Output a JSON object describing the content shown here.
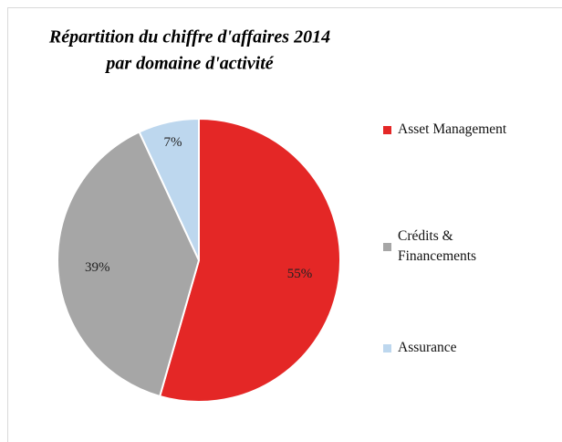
{
  "chart_data": {
    "type": "pie",
    "title": [
      "Répartition du chiffre d'affaires 2014",
      "par domaine d'activité"
    ],
    "categories": [
      "Asset Management",
      "Crédits & Financements",
      "Assurance"
    ],
    "values": [
      55,
      39,
      7
    ],
    "value_labels": [
      "55%",
      "39%",
      "7%"
    ],
    "colors": [
      "#e42726",
      "#a6a6a6",
      "#bdd7ee"
    ],
    "legend": "right"
  }
}
